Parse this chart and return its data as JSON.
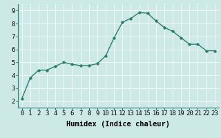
{
  "x": [
    0,
    1,
    2,
    3,
    4,
    5,
    6,
    7,
    8,
    9,
    10,
    11,
    12,
    13,
    14,
    15,
    16,
    17,
    18,
    19,
    20,
    21,
    22,
    23
  ],
  "y": [
    2.2,
    3.8,
    4.4,
    4.4,
    4.7,
    5.0,
    4.85,
    4.75,
    4.75,
    4.9,
    5.5,
    6.9,
    8.1,
    8.4,
    8.85,
    8.8,
    8.2,
    7.7,
    7.4,
    6.9,
    6.4,
    6.4,
    5.9,
    5.9
  ],
  "line_color": "#2d7d6e",
  "marker": "D",
  "marker_size": 1.8,
  "bg_color": "#cce9e5",
  "grid_color": "#f0f8f7",
  "xlabel": "Humidex (Indice chaleur)",
  "xlabel_fontsize": 7.5,
  "tick_fontsize": 6.5,
  "ylim": [
    1.5,
    9.5
  ],
  "xlim": [
    -0.5,
    23.5
  ],
  "yticks": [
    2,
    3,
    4,
    5,
    6,
    7,
    8,
    9
  ],
  "xtick_labels": [
    "0",
    "1",
    "2",
    "3",
    "4",
    "5",
    "6",
    "7",
    "8",
    "9",
    "10",
    "11",
    "12",
    "13",
    "14",
    "15",
    "16",
    "17",
    "18",
    "19",
    "20",
    "21",
    "22",
    "23"
  ],
  "line_width": 1.0
}
